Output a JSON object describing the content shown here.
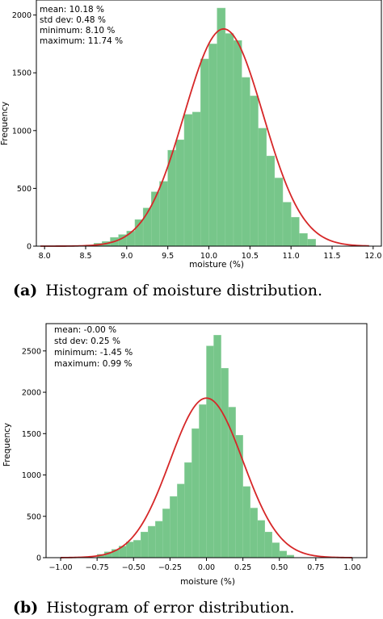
{
  "chart_data": [
    {
      "type": "bar",
      "caption_label": "(a)",
      "caption_text": "Histogram of moisture distribution.",
      "xlabel": "moisture (%)",
      "ylabel": "Frequency",
      "xlim": [
        7.9,
        12.1
      ],
      "ylim": [
        0,
        2130
      ],
      "xticks": [
        "8.0",
        "8.5",
        "9.0",
        "9.5",
        "10.0",
        "10.5",
        "11.0",
        "11.5",
        "12.0"
      ],
      "yticks": [
        "0",
        "500",
        "1000",
        "1500",
        "2000"
      ],
      "stats": [
        "mean: 10.18 %",
        "std dev: 0.48 %",
        "minimum: 8.10 %",
        "maximum: 11.74 %"
      ],
      "bin_edges": [
        8.5,
        8.6,
        8.7,
        8.8,
        8.9,
        9.0,
        9.1,
        9.2,
        9.3,
        9.4,
        9.5,
        9.6,
        9.7,
        9.8,
        9.9,
        10.0,
        10.1,
        10.2,
        10.3,
        10.4,
        10.5,
        10.6,
        10.7,
        10.8,
        10.9,
        11.0,
        11.1,
        11.2,
        11.3
      ],
      "counts": [
        10,
        25,
        40,
        75,
        100,
        130,
        230,
        330,
        470,
        560,
        830,
        920,
        1140,
        1160,
        1620,
        1750,
        2060,
        1840,
        1780,
        1460,
        1300,
        1020,
        780,
        590,
        380,
        250,
        110,
        60
      ],
      "fit": {
        "mean": 10.18,
        "std": 0.48,
        "peak": 1880,
        "range": [
          7.95,
          11.95
        ]
      },
      "colors": {
        "bar": "#77c68a",
        "line": "#d62728"
      }
    },
    {
      "type": "bar",
      "caption_label": "(b)",
      "caption_text": "Histogram of error distribution.",
      "xlabel": "moisture (%)",
      "ylabel": "Frequency",
      "xlim": [
        -1.1,
        1.1
      ],
      "ylim": [
        0,
        2830
      ],
      "xticks": [
        "−1.00",
        "−0.75",
        "−0.50",
        "−0.25",
        "0.00",
        "0.25",
        "0.50",
        "0.75",
        "1.00"
      ],
      "yticks": [
        "0",
        "500",
        "1000",
        "1500",
        "2000",
        "2500"
      ],
      "stats": [
        "mean: -0.00 %",
        "std dev: 0.25 %",
        "minimum: -1.45 %",
        "maximum: 0.99 %"
      ],
      "bin_edges": [
        -0.75,
        -0.7,
        -0.65,
        -0.6,
        -0.55,
        -0.5,
        -0.45,
        -0.4,
        -0.35,
        -0.3,
        -0.25,
        -0.2,
        -0.15,
        -0.1,
        -0.05,
        0.0,
        0.05,
        0.1,
        0.15,
        0.2,
        0.25,
        0.3,
        0.35,
        0.4,
        0.45,
        0.5,
        0.55,
        0.6
      ],
      "counts": [
        40,
        70,
        100,
        140,
        190,
        210,
        310,
        380,
        440,
        590,
        740,
        890,
        1150,
        1560,
        1850,
        2560,
        2690,
        2290,
        1820,
        1480,
        860,
        600,
        450,
        310,
        180,
        80,
        30
      ],
      "fit": {
        "mean": 0.0,
        "std": 0.25,
        "peak": 1930,
        "range": [
          -1.0,
          1.0
        ]
      },
      "colors": {
        "bar": "#77c68a",
        "line": "#d62728"
      }
    }
  ]
}
